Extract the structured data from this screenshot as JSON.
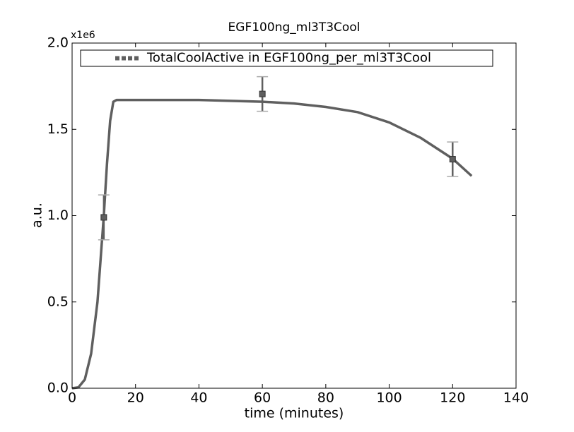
{
  "chart_data": {
    "type": "line",
    "title": "EGF100ng_ml3T3Cool",
    "x_label": "time (minutes)",
    "y_label": "a.u.",
    "y_offset_label": "x1e6",
    "xlim": [
      0,
      140
    ],
    "xticks": [
      0,
      20,
      40,
      60,
      80,
      100,
      120,
      140
    ],
    "ylim": [
      0,
      2
    ],
    "yticks": [
      {
        "value": 0,
        "label": "0.0"
      },
      0.5,
      {
        "value": 1,
        "label": "1.0"
      },
      1.5,
      {
        "value": 2,
        "label": "2.0"
      }
    ],
    "legend_position": "top",
    "series": [
      {
        "color": "#5f5f5f",
        "x": [
          0,
          2,
          4,
          6,
          8,
          9,
          10,
          11,
          12,
          13,
          14,
          20,
          40,
          60,
          70,
          80,
          90,
          100,
          110,
          120,
          126
        ],
        "values": [
          0,
          0.005,
          0.05,
          0.2,
          0.5,
          0.75,
          1.0,
          1.3,
          1.55,
          1.66,
          1.67,
          1.67,
          1.67,
          1.66,
          1.65,
          1.63,
          1.6,
          1.54,
          1.45,
          1.33,
          1.23
        ]
      },
      {
        "name": "TotalCoolActive in EGF100ng_per_ml3T3Cool",
        "color": "#5f5f5f",
        "x": [
          10,
          60,
          120
        ],
        "values": [
          0.99,
          1.705,
          1.327
        ],
        "errors": [
          0.13,
          0.1,
          0.1
        ]
      }
    ]
  }
}
